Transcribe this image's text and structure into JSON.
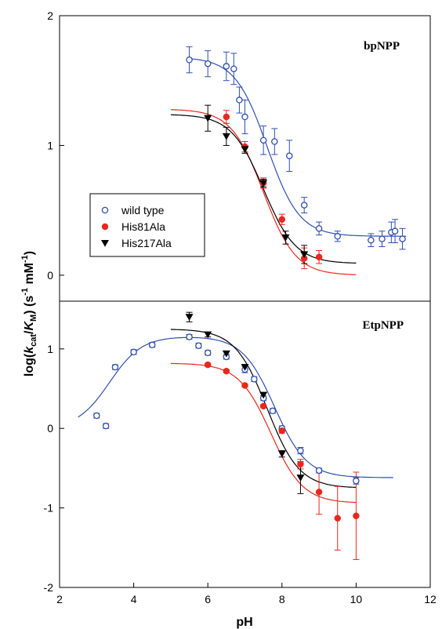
{
  "chart_data": [
    {
      "type": "scatter",
      "panel_label": "bpNPP",
      "xlabel": "",
      "ylabel": "",
      "xlim": [
        2,
        12
      ],
      "ylim": [
        -0.2,
        2
      ],
      "y_ticks": [
        "2",
        "1",
        "0"
      ],
      "y_tick_values": [
        2,
        1,
        0
      ],
      "series": [
        {
          "name": "wild type",
          "marker": "open-circle",
          "color": "#2f4fb0",
          "points": [
            {
              "x": 5.5,
              "y": 1.66,
              "err": 0.1
            },
            {
              "x": 6.0,
              "y": 1.63,
              "err": 0.1
            },
            {
              "x": 6.5,
              "y": 1.61,
              "err": 0.11
            },
            {
              "x": 6.7,
              "y": 1.59,
              "err": 0.12
            },
            {
              "x": 6.85,
              "y": 1.35,
              "err": 0.1
            },
            {
              "x": 7.0,
              "y": 1.22,
              "err": 0.13
            },
            {
              "x": 7.5,
              "y": 1.04,
              "err": 0.11
            },
            {
              "x": 7.8,
              "y": 1.03,
              "err": 0.1
            },
            {
              "x": 8.2,
              "y": 0.92,
              "err": 0.12
            },
            {
              "x": 8.6,
              "y": 0.54,
              "err": 0.06
            },
            {
              "x": 9.0,
              "y": 0.36,
              "err": 0.05
            },
            {
              "x": 9.5,
              "y": 0.3,
              "err": 0.04
            },
            {
              "x": 10.4,
              "y": 0.27,
              "err": 0.05
            },
            {
              "x": 10.7,
              "y": 0.28,
              "err": 0.06
            },
            {
              "x": 10.95,
              "y": 0.33,
              "err": 0.08
            },
            {
              "x": 11.05,
              "y": 0.34,
              "err": 0.09
            },
            {
              "x": 11.25,
              "y": 0.28,
              "err": 0.08
            }
          ],
          "curve": {
            "top": 1.68,
            "bottom": 0.3,
            "pKa": 7.6
          }
        },
        {
          "name": "His81Ala",
          "marker": "filled-circle",
          "color": "#e8281e",
          "points": [
            {
              "x": 6.5,
              "y": 1.22,
              "err": 0.05
            },
            {
              "x": 7.0,
              "y": 0.99,
              "err": 0.04
            },
            {
              "x": 7.5,
              "y": 0.71,
              "err": 0.04
            },
            {
              "x": 8.0,
              "y": 0.43,
              "err": 0.04
            },
            {
              "x": 8.6,
              "y": 0.13,
              "err": 0.08
            },
            {
              "x": 9.0,
              "y": 0.14,
              "err": 0.05
            }
          ],
          "curve": {
            "top": 1.28,
            "bottom": 0.0,
            "pKa": 7.5
          }
        },
        {
          "name": "His217Ala",
          "marker": "filled-triangle-down",
          "color": "#000000",
          "points": [
            {
              "x": 6.0,
              "y": 1.21,
              "err": 0.1
            },
            {
              "x": 6.5,
              "y": 1.07,
              "err": 0.07
            },
            {
              "x": 7.0,
              "y": 0.97,
              "err": 0.03
            },
            {
              "x": 7.5,
              "y": 0.71,
              "err": 0.03
            },
            {
              "x": 8.1,
              "y": 0.29,
              "err": 0.05
            },
            {
              "x": 8.6,
              "y": 0.16,
              "err": 0.07
            }
          ],
          "curve": {
            "top": 1.24,
            "bottom": 0.09,
            "pKa": 7.5
          }
        }
      ],
      "legend": {
        "placement": "left"
      }
    },
    {
      "type": "scatter",
      "panel_label": "EtpNPP",
      "xlabel": "pH",
      "ylabel": "",
      "xlim": [
        2,
        12
      ],
      "ylim": [
        -2,
        1.6
      ],
      "y_ticks": [
        "1",
        "0",
        "-1",
        "-2"
      ],
      "y_tick_values": [
        1,
        0,
        -1,
        -2
      ],
      "x_ticks": [
        "2",
        "4",
        "6",
        "8",
        "10",
        "12"
      ],
      "x_tick_values": [
        2,
        4,
        6,
        8,
        10,
        12
      ],
      "series": [
        {
          "name": "wild type",
          "marker": "open-circle",
          "color": "#2f4fb0",
          "points": [
            {
              "x": 3.0,
              "y": 0.16,
              "err": 0.03
            },
            {
              "x": 3.25,
              "y": 0.03,
              "err": 0.03
            },
            {
              "x": 3.5,
              "y": 0.77,
              "err": 0.03
            },
            {
              "x": 4.0,
              "y": 0.96,
              "err": 0.03
            },
            {
              "x": 4.5,
              "y": 1.05,
              "err": 0.03
            },
            {
              "x": 5.5,
              "y": 1.15,
              "err": 0.03
            },
            {
              "x": 5.75,
              "y": 1.04,
              "err": 0.03
            },
            {
              "x": 6.0,
              "y": 0.95,
              "err": 0.03
            },
            {
              "x": 6.5,
              "y": 0.9,
              "err": 0.03
            },
            {
              "x": 7.0,
              "y": 0.74,
              "err": 0.04
            },
            {
              "x": 7.25,
              "y": 0.62,
              "err": 0.03
            },
            {
              "x": 7.5,
              "y": 0.38,
              "err": 0.03
            },
            {
              "x": 7.75,
              "y": 0.22,
              "err": 0.03
            },
            {
              "x": 8.0,
              "y": 0.0,
              "err": 0.03
            },
            {
              "x": 8.5,
              "y": -0.28,
              "err": 0.04
            },
            {
              "x": 9.0,
              "y": -0.53,
              "err": 0.03
            },
            {
              "x": 10.0,
              "y": -0.66,
              "err": 0.04
            }
          ]
        },
        {
          "name": "His81Ala",
          "marker": "filled-circle",
          "color": "#e8281e",
          "points": [
            {
              "x": 6.0,
              "y": 0.8,
              "err": 0.02
            },
            {
              "x": 6.5,
              "y": 0.72,
              "err": 0.02
            },
            {
              "x": 7.0,
              "y": 0.54,
              "err": 0.02
            },
            {
              "x": 7.5,
              "y": 0.28,
              "err": 0.02
            },
            {
              "x": 8.0,
              "y": -0.03,
              "err": 0.03
            },
            {
              "x": 8.5,
              "y": -0.45,
              "err": 0.06
            },
            {
              "x": 9.0,
              "y": -0.8,
              "err": 0.28
            },
            {
              "x": 9.5,
              "y": -1.13,
              "err": 0.4
            },
            {
              "x": 10.0,
              "y": -1.1,
              "err": 0.55
            }
          ],
          "curve": {
            "top": 0.82,
            "bottom": -0.94,
            "pKa": 7.7
          }
        },
        {
          "name": "His217Ala",
          "marker": "filled-triangle-down",
          "color": "#000000",
          "points": [
            {
              "x": 5.5,
              "y": 1.4,
              "err": 0.06
            },
            {
              "x": 6.0,
              "y": 1.18,
              "err": 0.03
            },
            {
              "x": 6.5,
              "y": 0.94,
              "err": 0.03
            },
            {
              "x": 7.0,
              "y": 0.77,
              "err": 0.03
            },
            {
              "x": 7.5,
              "y": 0.42,
              "err": 0.03
            },
            {
              "x": 8.0,
              "y": -0.32,
              "err": 0.04
            },
            {
              "x": 8.5,
              "y": -0.62,
              "err": 0.2
            }
          ],
          "curve": {
            "top": 1.25,
            "bottom": -0.75,
            "pKa": 7.6
          }
        }
      ]
    }
  ]
}
